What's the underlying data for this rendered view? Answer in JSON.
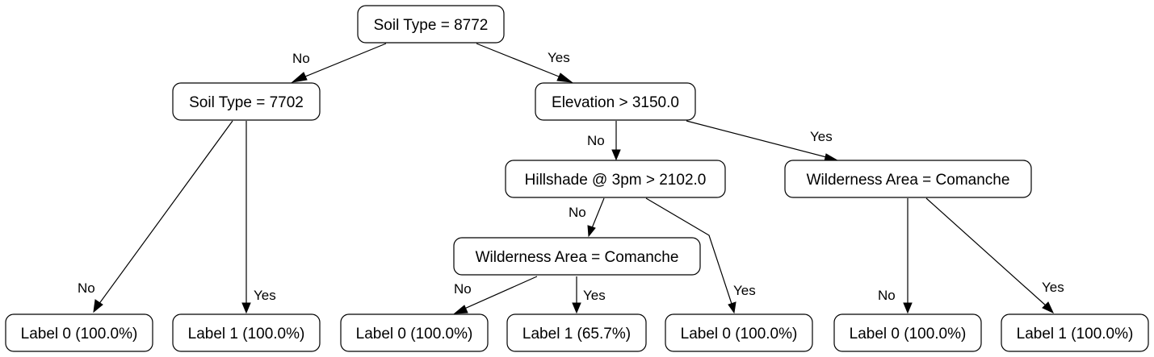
{
  "nodes": {
    "n_root": "Soil Type = 8772",
    "n_soil7702": "Soil Type = 7702",
    "n_elev": "Elevation > 3150.0",
    "n_hill": "Hillshade @ 3pm > 2102.0",
    "n_wild_right": "Wilderness Area = Comanche",
    "n_wild_mid": "Wilderness Area = Comanche",
    "leaf1": "Label 0 (100.0%)",
    "leaf2": "Label 1 (100.0%)",
    "leaf3": "Label 0 (100.0%)",
    "leaf4": "Label 1 (65.7%)",
    "leaf5": "Label 0 (100.0%)",
    "leaf6": "Label 0 (100.0%)",
    "leaf7": "Label 1 (100.0%)"
  },
  "edges": {
    "e_root_soil7702": "No",
    "e_root_elev": "Yes",
    "e_soil7702_leaf1": "No",
    "e_soil7702_leaf2": "Yes",
    "e_elev_hill": "No",
    "e_elev_wild_right": "Yes",
    "e_hill_wild_mid": "No",
    "e_hill_leaf5": "Yes",
    "e_wild_mid_leaf3": "No",
    "e_wild_mid_leaf4": "Yes",
    "e_wild_right_leaf6": "No",
    "e_wild_right_leaf7": "Yes"
  }
}
